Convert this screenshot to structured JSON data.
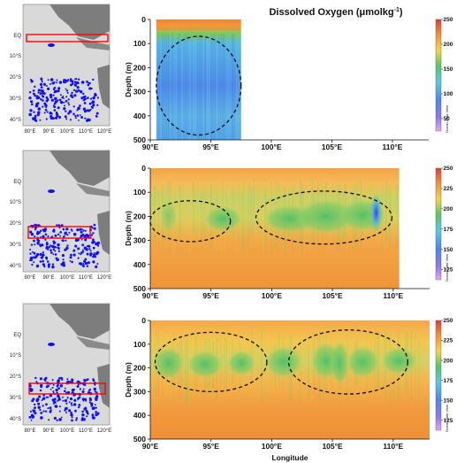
{
  "title": "Dissolved Oxygen (μmolkg",
  "title_superscript": "-1",
  "title_close": ")",
  "watermark": "Ocean Data View",
  "colors": {
    "orange": "#F29A3A",
    "yellow": "#F2C744",
    "green": "#56C46A",
    "cyan": "#5EC7E0",
    "blue": "#3F6FE0",
    "red": "#E23B3B",
    "land": "#7d7d7d",
    "sea": "#d9d9d9",
    "stations": "#1010ff",
    "box": "#ff0000"
  },
  "map": {
    "lat_labels": [
      "EQ",
      "10°S",
      "20°S",
      "30°S",
      "40°S"
    ],
    "lon_labels": [
      "80°E",
      "90°E",
      "100°E",
      "110°E",
      "120°E"
    ]
  },
  "chart_data": [
    {
      "type": "heatmap",
      "panel": "top",
      "title": "Dissolved Oxygen (μmolkg-1)",
      "ylabel": "Depth (m)",
      "xlabel": "",
      "x_ticks": [
        "90°E",
        "95°E",
        "100°E",
        "105°E",
        "110°E"
      ],
      "x_tick_values": [
        90,
        95,
        100,
        105,
        110
      ],
      "xlim": [
        90,
        113
      ],
      "y_ticks": [
        "0",
        "100",
        "200",
        "300",
        "400",
        "500"
      ],
      "ylim": [
        0,
        500
      ],
      "colorbar_ticks": [
        "50",
        "100",
        "150",
        "200",
        "250"
      ],
      "colorbar_range": [
        25,
        250
      ],
      "data_lon_range": [
        90.5,
        97.5
      ],
      "ellipses": [
        {
          "lon_center": 94,
          "depth_center": 275,
          "lon_radius": 3.5,
          "depth_radius": 205
        }
      ],
      "box_lat": [
        -1,
        2
      ]
    },
    {
      "type": "heatmap",
      "panel": "middle",
      "ylabel": "Depth (m)",
      "xlabel": "",
      "x_ticks": [
        "90°E",
        "95°E",
        "100°E",
        "105°E",
        "110°E"
      ],
      "x_tick_values": [
        90,
        95,
        100,
        105,
        110
      ],
      "xlim": [
        90,
        113
      ],
      "y_ticks": [
        "0",
        "100",
        "200",
        "300",
        "400",
        "500"
      ],
      "ylim": [
        0,
        500
      ],
      "colorbar_ticks": [
        "125",
        "150",
        "175",
        "200",
        "225",
        "250"
      ],
      "colorbar_range": [
        112.5,
        250
      ],
      "data_lon_range": [
        90,
        110.5
      ],
      "ellipses": [
        {
          "lon_center": 93.3,
          "depth_center": 220,
          "lon_radius": 3.3,
          "depth_radius": 85
        },
        {
          "lon_center": 104.3,
          "depth_center": 205,
          "lon_radius": 5.6,
          "depth_radius": 110
        }
      ],
      "box_lat": [
        -18.5,
        -23
      ]
    },
    {
      "type": "heatmap",
      "panel": "bottom",
      "ylabel": "Depth (m)",
      "xlabel": "Longitude",
      "x_ticks": [
        "90°E",
        "95°E",
        "100°E",
        "105°E",
        "110°E"
      ],
      "x_tick_values": [
        90,
        95,
        100,
        105,
        110
      ],
      "xlim": [
        90,
        113
      ],
      "y_ticks": [
        "0",
        "100",
        "200",
        "300",
        "400",
        "500"
      ],
      "ylim": [
        0,
        500
      ],
      "colorbar_ticks": [
        "125",
        "150",
        "175",
        "200",
        "225",
        "250"
      ],
      "colorbar_range": [
        112.5,
        250
      ],
      "data_lon_range": [
        90,
        113
      ],
      "ellipses": [
        {
          "lon_center": 95,
          "depth_center": 175,
          "lon_radius": 4.6,
          "depth_radius": 125
        },
        {
          "lon_center": 106.3,
          "depth_center": 175,
          "lon_radius": 4.9,
          "depth_radius": 135
        }
      ],
      "box_lat": [
        -28,
        -32
      ]
    }
  ]
}
